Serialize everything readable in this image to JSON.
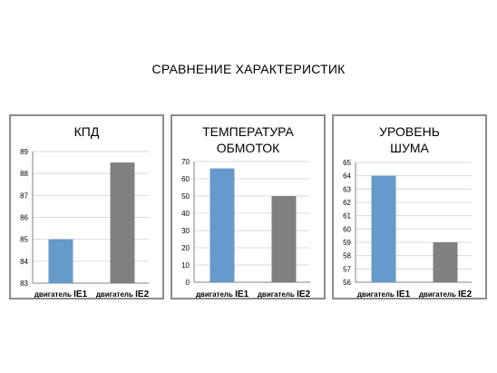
{
  "heading": "СРАВНЕНИЕ ХАРАКТЕРИСТИК",
  "colors": {
    "series1": "#6699cc",
    "series2": "#808080",
    "grid": "#d9d9d9",
    "axis": "#808080"
  },
  "chart_data": [
    {
      "type": "bar",
      "title_lines": [
        "КПД"
      ],
      "categories": [
        {
          "prefix": "двигатель ",
          "suffix": "IE1"
        },
        {
          "prefix": "двигатель ",
          "suffix": "IE2"
        }
      ],
      "values": [
        85,
        88.5
      ],
      "ylim": [
        83,
        89
      ],
      "yticks": [
        83,
        84,
        85,
        86,
        87,
        88,
        89
      ],
      "ytick_labels": [
        "83",
        "84",
        "85",
        "86",
        "87",
        "88",
        "89"
      ],
      "grid": true
    },
    {
      "type": "bar",
      "title_lines": [
        "ТЕМПЕРАТУРА",
        "ОБМОТОК"
      ],
      "categories": [
        {
          "prefix": "двигатель ",
          "suffix": "IE1"
        },
        {
          "prefix": "двигатель ",
          "suffix": "IE2"
        }
      ],
      "values": [
        66,
        50
      ],
      "ylim": [
        0,
        70
      ],
      "yticks": [
        0,
        10,
        20,
        30,
        40,
        50,
        60,
        70
      ],
      "ytick_labels": [
        "0",
        "10",
        "20",
        "30",
        "40",
        "50",
        "60",
        "70"
      ],
      "grid": true
    },
    {
      "type": "bar",
      "title_lines": [
        "УРОВЕНЬ",
        "ШУМА"
      ],
      "categories": [
        {
          "prefix": "двигатель ",
          "suffix": "IE1"
        },
        {
          "prefix": "двигатель ",
          "suffix": "IE2"
        }
      ],
      "values": [
        64,
        59
      ],
      "ylim": [
        56,
        65
      ],
      "yticks": [
        56,
        57,
        58,
        59,
        60,
        61,
        62,
        63,
        64,
        65
      ],
      "ytick_labels": [
        "56",
        "57",
        "58",
        "59",
        "60",
        "61",
        "62",
        "63",
        "64",
        "65"
      ],
      "grid": true
    }
  ]
}
